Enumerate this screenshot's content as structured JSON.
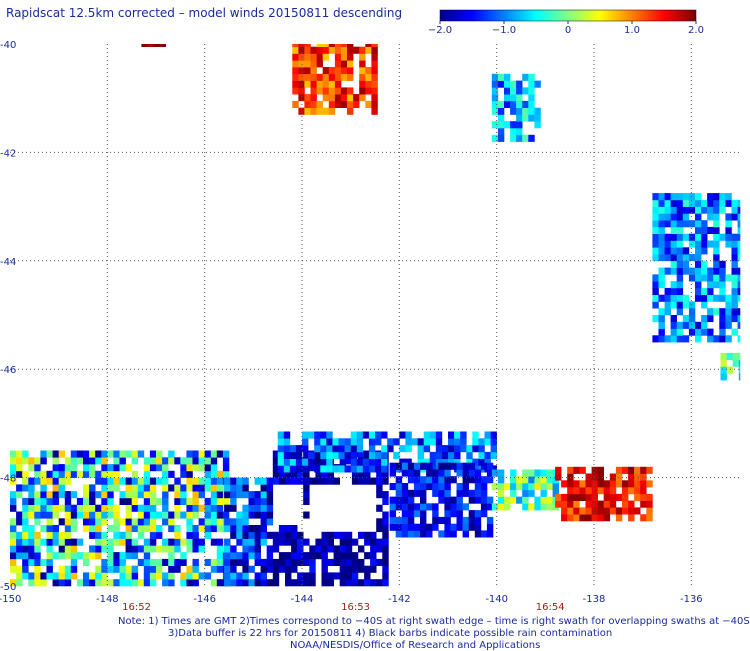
{
  "chart_data": {
    "type": "heatmap",
    "title": "Rapidscat 12.5km corrected – model winds 20150811 descending",
    "colorbar": {
      "range": [
        -2.0,
        2.0
      ],
      "tick_labels": [
        "−2.0",
        "−1.0",
        "0",
        "1.0",
        "2.0"
      ],
      "tick_values": [
        -2.0,
        -1.0,
        0,
        1.0,
        2.0
      ]
    },
    "x_axis": {
      "range": [
        -150,
        -135
      ],
      "ticks": [
        -150,
        -148,
        -146,
        -144,
        -142,
        -140,
        -138,
        -136
      ],
      "tick_labels": [
        "-150",
        "-148",
        "-146",
        "-144",
        "-142",
        "-140",
        "-138",
        "-136"
      ]
    },
    "y_axis": {
      "range": [
        -50,
        -40
      ],
      "ticks": [
        -40,
        -42,
        -44,
        -46,
        -48,
        -50
      ],
      "tick_labels": [
        "-40",
        "-42",
        "-44",
        "-46",
        "-48",
        "-50"
      ]
    },
    "grid": true,
    "time_labels": [
      {
        "lon": -147.4,
        "text": "16:52"
      },
      {
        "lon": -142.9,
        "text": "16:53"
      },
      {
        "lon": -138.9,
        "text": "16:54"
      }
    ],
    "regions": [
      {
        "lon": [
          -144.2,
          -142.5
        ],
        "lat": [
          -41.3,
          -40.0
        ],
        "value": 1.3,
        "spread": 0.6
      },
      {
        "lon": [
          -147.3,
          -146.8
        ],
        "lat": [
          -40.05,
          -40.0
        ],
        "value": 1.9,
        "spread": 0.1
      },
      {
        "lon": [
          -140.1,
          -139.2
        ],
        "lat": [
          -41.8,
          -40.6
        ],
        "value": -0.8,
        "spread": 0.7
      },
      {
        "lon": [
          -136.8,
          -135.0
        ],
        "lat": [
          -45.5,
          -42.8
        ],
        "value": -1.0,
        "spread": 0.7
      },
      {
        "lon": [
          -135.4,
          -135.0
        ],
        "lat": [
          -46.2,
          -45.8
        ],
        "value": -0.2,
        "spread": 0.7
      },
      {
        "lon": [
          -150.0,
          -145.6
        ],
        "lat": [
          -50.0,
          -47.6
        ],
        "value": -0.6,
        "spread": 1.4
      },
      {
        "lon": [
          -145.6,
          -144.6
        ],
        "lat": [
          -50.0,
          -48.0
        ],
        "value": -1.4,
        "spread": 0.8
      },
      {
        "lon": [
          -144.6,
          -142.3
        ],
        "lat": [
          -50.0,
          -47.6
        ],
        "value": -1.8,
        "spread": 0.4
      },
      {
        "lon": [
          -144.5,
          -140.1
        ],
        "lat": [
          -47.9,
          -47.2
        ],
        "value": -1.1,
        "spread": 0.7
      },
      {
        "lon": [
          -142.2,
          -140.1
        ],
        "lat": [
          -49.1,
          -47.8
        ],
        "value": -1.5,
        "spread": 0.5
      },
      {
        "lon": [
          -140.1,
          -138.8
        ],
        "lat": [
          -48.6,
          -47.9
        ],
        "value": -0.2,
        "spread": 0.8
      },
      {
        "lon": [
          -138.8,
          -136.8
        ],
        "lat": [
          -48.8,
          -47.9
        ],
        "value": 1.5,
        "spread": 0.5
      }
    ],
    "no_data": [
      {
        "lon": [
          -143.9,
          -142.5
        ],
        "lat": [
          -49.0,
          -48.2
        ]
      },
      {
        "lon": [
          -144.6,
          -144.0
        ],
        "lat": [
          -48.9,
          -48.2
        ]
      }
    ]
  },
  "footer": {
    "line1": "Note: 1) Times are GMT 2)Times correspond to −40S at right swath edge – time is right swath for overlapping swaths at −40S",
    "line2": "3)Data buffer is 22 hrs for 20150811 4) Black barbs indicate possible rain contamination",
    "line3": "NOAA/NESDIS/Office of Research and Applications"
  },
  "colors": {
    "label": "#1a2aa0",
    "time_label": "#a0201a",
    "grid": "#555555"
  }
}
